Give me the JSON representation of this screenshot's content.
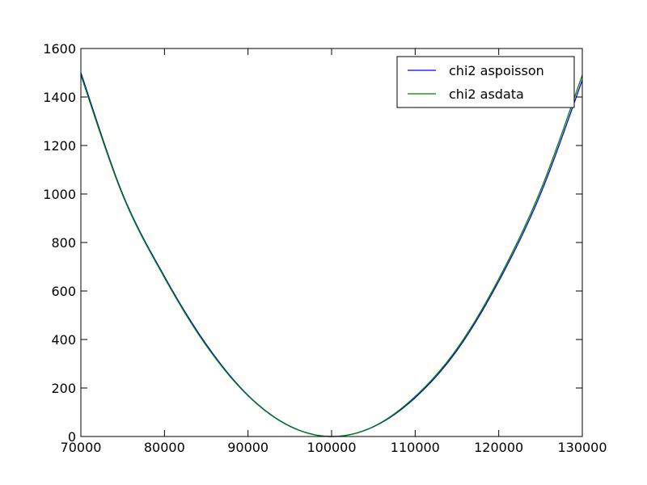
{
  "chart_data": {
    "type": "line",
    "title": "",
    "xlabel": "",
    "ylabel": "",
    "xlim": [
      70000,
      130000
    ],
    "ylim": [
      0,
      1600
    ],
    "x_ticks": [
      70000,
      80000,
      90000,
      100000,
      110000,
      120000,
      130000
    ],
    "y_ticks": [
      0,
      200,
      400,
      600,
      800,
      1000,
      1200,
      1400,
      1600
    ],
    "grid": false,
    "legend_position": "top-right",
    "series": [
      {
        "name": "chi2 aspoisson",
        "color": "#0000ff",
        "x": [
          70000,
          75000,
          80000,
          85000,
          90000,
          95000,
          100000,
          105000,
          110000,
          115000,
          120000,
          125000,
          130000
        ],
        "y": [
          1500,
          1000,
          660,
          380,
          170,
          43,
          0,
          40,
          160,
          355,
          640,
          1000,
          1470
        ]
      },
      {
        "name": "chi2 asdata",
        "color": "#008000",
        "x": [
          70000,
          75000,
          80000,
          85000,
          90000,
          95000,
          100000,
          105000,
          110000,
          115000,
          120000,
          125000,
          130000
        ],
        "y": [
          1490,
          995,
          655,
          375,
          168,
          42,
          0,
          41,
          165,
          362,
          650,
          1015,
          1490
        ]
      }
    ]
  }
}
